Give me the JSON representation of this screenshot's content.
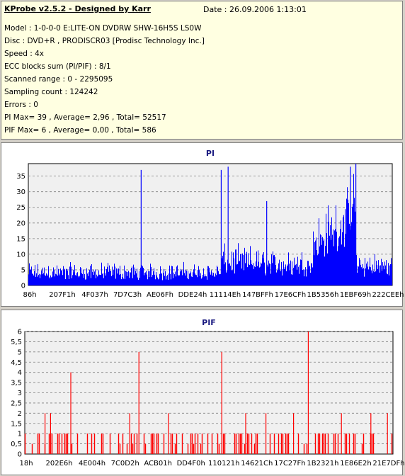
{
  "info": {
    "title": "KProbe v2.5.2 - Designed by Karr",
    "date": "Date : 26.09.2006 1:13:01",
    "lines": [
      "Model : 1-0-0-0 E:LITE-ON DVDRW SHW-16H5S  LS0W",
      "Disc : DVD+R , PRODISCR03 [Prodisc Technology Inc.]",
      "Speed : 4x",
      "ECC blocks sum (PI/PIF) : 8/1",
      "Scanned range : 0 - 2295095",
      "Sampling count : 124242",
      "Errors : 0",
      "PI Max= 39 , Average= 2,96 , Total= 52517",
      "PIF Max= 6 , Average= 0,00 , Total= 586"
    ]
  },
  "colors": {
    "pi": "#0000ff",
    "pif": "#ff0000",
    "plot_bg": "#f0f0f0",
    "grid": "#7f7f7f"
  },
  "chart_data": [
    {
      "type": "bar",
      "title": "PI",
      "ylim": [
        0,
        39
      ],
      "yticks": [
        "0",
        "5",
        "10",
        "15",
        "20",
        "25",
        "30",
        "35"
      ],
      "yvalues": [
        0,
        5,
        10,
        15,
        20,
        25,
        30,
        35
      ],
      "xticks": [
        "86h",
        "207F1h",
        "4F037h",
        "7D7C3h",
        "AE06Fh",
        "DDE24h",
        "11114Eh",
        "147BFFh",
        "17E6CFh",
        "1B5356h",
        "1EBF69h",
        "222CEEh"
      ],
      "grid": "horizontal dashed",
      "profile": [
        {
          "from": 0.0,
          "to": 0.53,
          "base": 4,
          "noise": 4
        },
        {
          "from": 0.53,
          "to": 0.64,
          "base": 8,
          "noise": 6
        },
        {
          "from": 0.64,
          "to": 0.78,
          "base": 7,
          "noise": 6
        },
        {
          "from": 0.78,
          "to": 0.88,
          "base": 13,
          "noise": 12
        },
        {
          "from": 0.88,
          "to": 0.9,
          "base": 22,
          "noise": 14
        },
        {
          "from": 0.9,
          "to": 1.0,
          "base": 6,
          "noise": 6
        }
      ],
      "spikes": [
        {
          "x": 0.31,
          "value": 37
        },
        {
          "x": 0.53,
          "value": 37
        },
        {
          "x": 0.549,
          "value": 38
        },
        {
          "x": 0.655,
          "value": 27
        },
        {
          "x": 0.885,
          "value": 38
        },
        {
          "x": 0.9,
          "value": 39
        }
      ],
      "max": 39
    },
    {
      "type": "bar",
      "title": "PIF",
      "ylim": [
        0,
        6
      ],
      "yticks": [
        "0",
        "0,5",
        "1",
        "1,5",
        "2",
        "2,5",
        "3",
        "3,5",
        "4",
        "4,5",
        "5",
        "5,5",
        "6"
      ],
      "yvalues": [
        0,
        0.5,
        1,
        1.5,
        2,
        2.5,
        3,
        3.5,
        4,
        4.5,
        5,
        5.5,
        6
      ],
      "xticks": [
        "18h",
        "202E6h",
        "4E004h",
        "7C0D2h",
        "ACB01h",
        "DD4F0h",
        "110121h",
        "14621Ch",
        "17C27Fh",
        "1B2321h",
        "1E86E2h",
        "21E7DFh"
      ],
      "grid": "horizontal dashed",
      "spikes": [
        {
          "x": 0.125,
          "value": 4
        },
        {
          "x": 0.31,
          "value": 5
        },
        {
          "x": 0.535,
          "value": 5
        },
        {
          "x": 0.77,
          "value": 6
        },
        {
          "x": 0.055,
          "value": 2
        },
        {
          "x": 0.07,
          "value": 2
        },
        {
          "x": 0.285,
          "value": 2
        },
        {
          "x": 0.39,
          "value": 2
        },
        {
          "x": 0.6,
          "value": 2
        },
        {
          "x": 0.655,
          "value": 2
        },
        {
          "x": 0.73,
          "value": 2
        },
        {
          "x": 0.86,
          "value": 2
        },
        {
          "x": 0.94,
          "value": 2
        },
        {
          "x": 0.985,
          "value": 2
        }
      ],
      "max": 6
    }
  ]
}
